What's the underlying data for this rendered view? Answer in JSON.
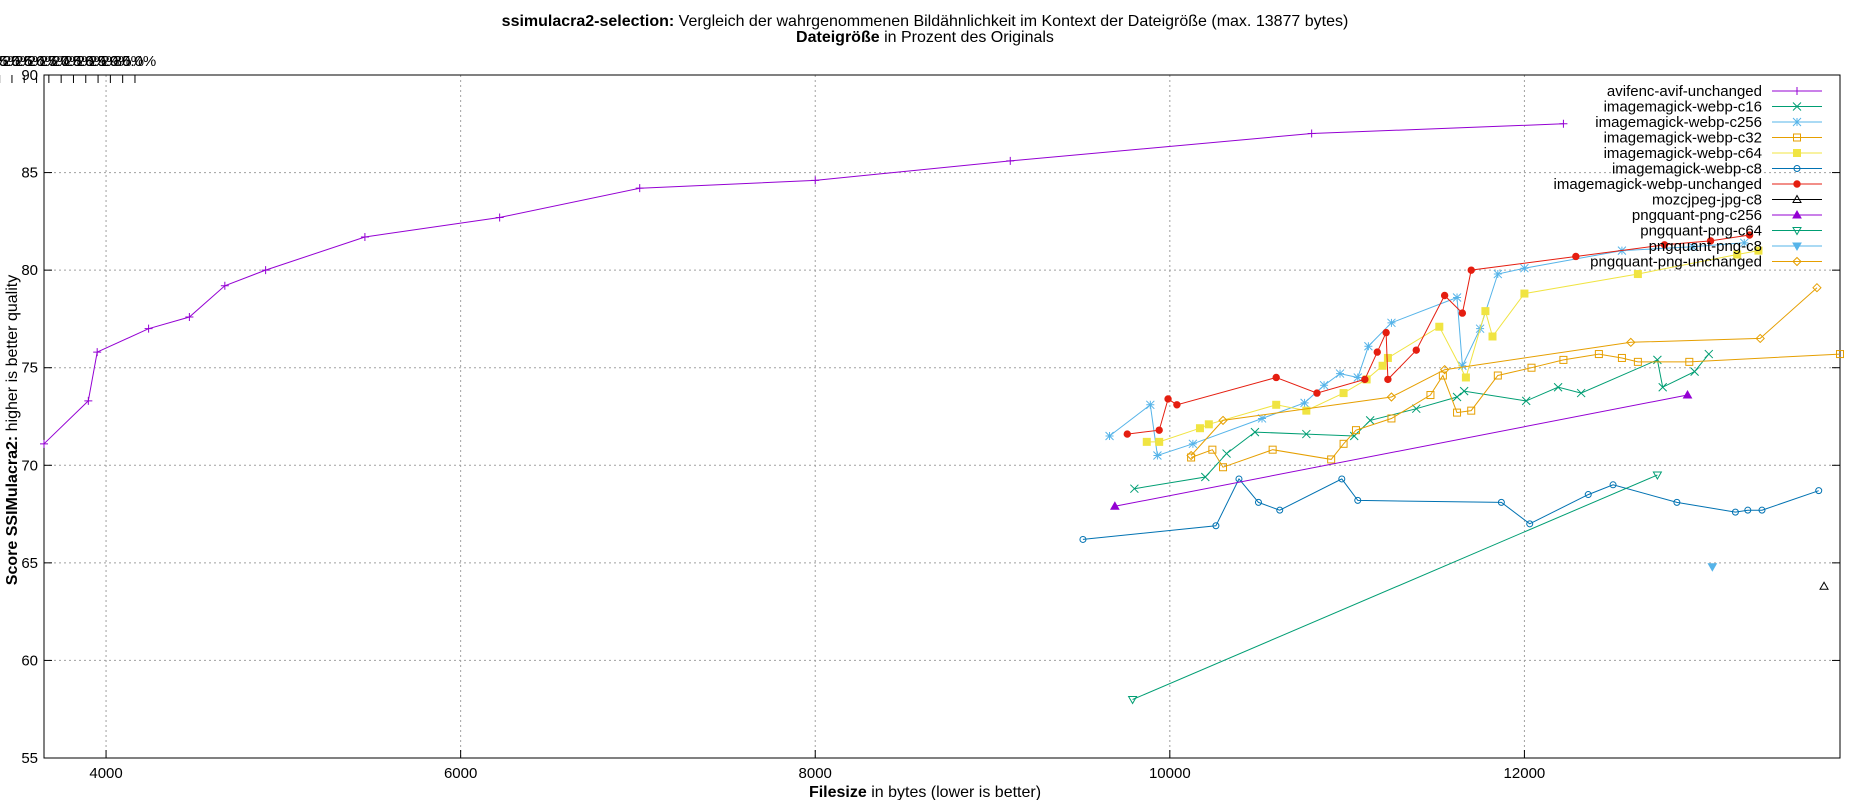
{
  "chart_data": {
    "type": "line",
    "title_bold": "ssimulacra2-selection:",
    "title_rest": " Vergleich der wahrgenommenen Bildähnlichkeit im Kontext der Dateigröße (max. 13877 bytes)",
    "x2label_bold": "Dateigröße",
    "x2label_rest": " in Prozent des Originals",
    "xlabel_bold": "Filesize",
    "xlabel_rest": " in bytes (lower is better)",
    "ylabel_bold": "Score SSIMulacra2:",
    "ylabel_rest": " higher is better quality",
    "xlim": [
      3650,
      13780
    ],
    "ylim": [
      55,
      90
    ],
    "x_ticks": [
      4000,
      6000,
      8000,
      10000,
      12000
    ],
    "x_tick_labels": [
      "4000",
      "6000",
      "8000",
      "10000",
      "12000"
    ],
    "y_ticks": [
      55,
      60,
      65,
      70,
      75,
      80,
      85,
      90
    ],
    "y_tick_labels": [
      "55",
      "60",
      "65",
      "70",
      "75",
      "80",
      "85",
      "90"
    ],
    "x2_max_bytes": 13877,
    "x2_ticks_percent": [
      8.5,
      9.0,
      9.5,
      10.0,
      10.5,
      11.0,
      11.5,
      12.0,
      12.5,
      13.0,
      13.5,
      14.0,
      14.5,
      15.0,
      15.5,
      16.0,
      16.5,
      17.0,
      17.5,
      18.0,
      18.5,
      19.0,
      19.5,
      20.0,
      20.5,
      21.0,
      21.5,
      22.0,
      22.5,
      23.0,
      23.5,
      24.0,
      24.5,
      25.0,
      25.5,
      26.0,
      26.5,
      27.0,
      27.5,
      28.0,
      28.5,
      29.0,
      29.5,
      30.0
    ],
    "x2_tick_labels": [
      "8.5%",
      "9.0%",
      "9.5%",
      "10.0%",
      "10.5%",
      "11.0%",
      "11.5%",
      "12.0%",
      "12.5%",
      "13.0%",
      "13.5%",
      "14.0%",
      "14.5%",
      "15.0%",
      "15.5%",
      "16.0%",
      "16.5%",
      "17.0%",
      "17.5%",
      "18.0%",
      "18.5%",
      "19.0%",
      "19.5%",
      "20.0%",
      "20.5%",
      "21.0%",
      "21.5%",
      "22.0%",
      "22.5%",
      "23.0%",
      "23.5%",
      "24.0%",
      "24.5%",
      "25.0%",
      "25.5%",
      "26.0%",
      "26.5%",
      "27.0%",
      "27.5%",
      "28.0%",
      "28.5%",
      "29.0%",
      "29.5%",
      "30.0%"
    ],
    "grid": true,
    "legend_position": "top-right",
    "series": [
      {
        "name": "avifenc-avif-unchanged",
        "color": "#9400d3",
        "marker": "plus",
        "points": [
          [
            3650,
            71.1
          ],
          [
            3900,
            73.3
          ],
          [
            3950,
            75.8
          ],
          [
            4240,
            77.0
          ],
          [
            4470,
            77.6
          ],
          [
            4670,
            79.2
          ],
          [
            4900,
            80.0
          ],
          [
            5460,
            81.7
          ],
          [
            6220,
            82.7
          ],
          [
            7010,
            84.2
          ],
          [
            8000,
            84.6
          ],
          [
            9100,
            85.6
          ],
          [
            10800,
            87.0
          ],
          [
            12220,
            87.5
          ]
        ]
      },
      {
        "name": "imagemagick-webp-c16",
        "color": "#009e73",
        "marker": "cross",
        "points": [
          [
            9800,
            68.8
          ],
          [
            10200,
            69.4
          ],
          [
            10320,
            70.6
          ],
          [
            10480,
            71.7
          ],
          [
            10770,
            71.6
          ],
          [
            11040,
            71.5
          ],
          [
            11130,
            72.3
          ],
          [
            11390,
            72.9
          ],
          [
            11620,
            73.5
          ],
          [
            11660,
            73.8
          ],
          [
            12010,
            73.3
          ],
          [
            12190,
            74.0
          ],
          [
            12320,
            73.7
          ],
          [
            12750,
            75.4
          ],
          [
            12780,
            74.0
          ],
          [
            12960,
            74.8
          ],
          [
            13040,
            75.7
          ]
        ]
      },
      {
        "name": "imagemagick-webp-c256",
        "color": "#56b4e9",
        "marker": "star",
        "points": [
          [
            9660,
            71.5
          ],
          [
            9890,
            73.1
          ],
          [
            9930,
            70.5
          ],
          [
            10130,
            71.1
          ],
          [
            10520,
            72.4
          ],
          [
            10760,
            73.2
          ],
          [
            10870,
            74.1
          ],
          [
            10960,
            74.7
          ],
          [
            11060,
            74.5
          ],
          [
            11120,
            76.1
          ],
          [
            11250,
            77.3
          ],
          [
            11620,
            78.6
          ],
          [
            11650,
            75.1
          ],
          [
            11750,
            77.0
          ],
          [
            11850,
            79.8
          ],
          [
            12000,
            80.1
          ],
          [
            12550,
            81.0
          ],
          [
            12950,
            81.2
          ],
          [
            13240,
            81.4
          ]
        ]
      },
      {
        "name": "imagemagick-webp-c32",
        "color": "#e69f00",
        "marker": "square",
        "points": [
          [
            10120,
            70.4
          ],
          [
            10240,
            70.8
          ],
          [
            10300,
            69.9
          ],
          [
            10580,
            70.8
          ],
          [
            10910,
            70.3
          ],
          [
            10980,
            71.1
          ],
          [
            11050,
            71.8
          ],
          [
            11250,
            72.4
          ],
          [
            11470,
            73.6
          ],
          [
            11540,
            74.6
          ],
          [
            11620,
            72.7
          ],
          [
            11700,
            72.8
          ],
          [
            11850,
            74.6
          ],
          [
            12040,
            75.0
          ],
          [
            12220,
            75.4
          ],
          [
            12420,
            75.7
          ],
          [
            12550,
            75.5
          ],
          [
            12640,
            75.3
          ],
          [
            12930,
            75.3
          ],
          [
            13780,
            75.7
          ]
        ]
      },
      {
        "name": "imagemagick-webp-c64",
        "color": "#f0e442",
        "marker": "filled-square",
        "points": [
          [
            9870,
            71.2
          ],
          [
            9940,
            71.2
          ],
          [
            10170,
            71.9
          ],
          [
            10220,
            72.1
          ],
          [
            10600,
            73.1
          ],
          [
            10770,
            72.8
          ],
          [
            10980,
            73.7
          ],
          [
            11110,
            74.4
          ],
          [
            11200,
            75.1
          ],
          [
            11230,
            75.5
          ],
          [
            11520,
            77.1
          ],
          [
            11670,
            74.5
          ],
          [
            11780,
            77.9
          ],
          [
            11820,
            76.6
          ],
          [
            12000,
            78.8
          ],
          [
            12640,
            79.8
          ],
          [
            13200,
            80.8
          ],
          [
            13320,
            81.0
          ]
        ]
      },
      {
        "name": "imagemagick-webp-c8",
        "color": "#0072b2",
        "marker": "circle",
        "points": [
          [
            9510,
            66.2
          ],
          [
            10260,
            66.9
          ],
          [
            10390,
            69.3
          ],
          [
            10500,
            68.1
          ],
          [
            10620,
            67.7
          ],
          [
            10970,
            69.3
          ],
          [
            11060,
            68.2
          ],
          [
            11870,
            68.1
          ],
          [
            12030,
            67.0
          ],
          [
            12360,
            68.5
          ],
          [
            12500,
            69.0
          ],
          [
            12860,
            68.1
          ],
          [
            13190,
            67.6
          ],
          [
            13260,
            67.7
          ],
          [
            13340,
            67.7
          ],
          [
            13660,
            68.7
          ]
        ]
      },
      {
        "name": "imagemagick-webp-unchanged",
        "color": "#e51e10",
        "marker": "filled-circle",
        "points": [
          [
            9760,
            71.6
          ],
          [
            9940,
            71.8
          ],
          [
            9990,
            73.4
          ],
          [
            10040,
            73.1
          ],
          [
            10600,
            74.5
          ],
          [
            10830,
            73.7
          ],
          [
            11100,
            74.4
          ],
          [
            11170,
            75.8
          ],
          [
            11220,
            76.8
          ],
          [
            11230,
            74.4
          ],
          [
            11390,
            75.9
          ],
          [
            11550,
            78.7
          ],
          [
            11650,
            77.8
          ],
          [
            11700,
            80.0
          ],
          [
            12290,
            80.7
          ],
          [
            12790,
            81.3
          ],
          [
            13050,
            81.5
          ],
          [
            13270,
            81.8
          ]
        ]
      },
      {
        "name": "mozcjpeg-jpg-c8",
        "color": "#000000",
        "marker": "triangle",
        "points": [
          [
            13690,
            63.8
          ]
        ]
      },
      {
        "name": "pngquant-png-c256",
        "color": "#9400d3",
        "marker": "filled-triangle",
        "points": [
          [
            9690,
            67.9
          ],
          [
            12920,
            73.6
          ]
        ]
      },
      {
        "name": "pngquant-png-c64",
        "color": "#009e73",
        "marker": "down-triangle",
        "points": [
          [
            9790,
            58.0
          ],
          [
            12750,
            69.5
          ]
        ]
      },
      {
        "name": "pngquant-png-c8",
        "color": "#56b4e9",
        "marker": "filled-down-triangle",
        "points": [
          [
            13060,
            64.8
          ]
        ]
      },
      {
        "name": "pngquant-png-unchanged",
        "color": "#e69f00",
        "marker": "diamond",
        "points": [
          [
            10120,
            70.5
          ],
          [
            10300,
            72.3
          ],
          [
            11250,
            73.5
          ],
          [
            11550,
            74.9
          ],
          [
            12600,
            76.3
          ],
          [
            13330,
            76.5
          ],
          [
            13650,
            79.1
          ]
        ]
      }
    ]
  }
}
